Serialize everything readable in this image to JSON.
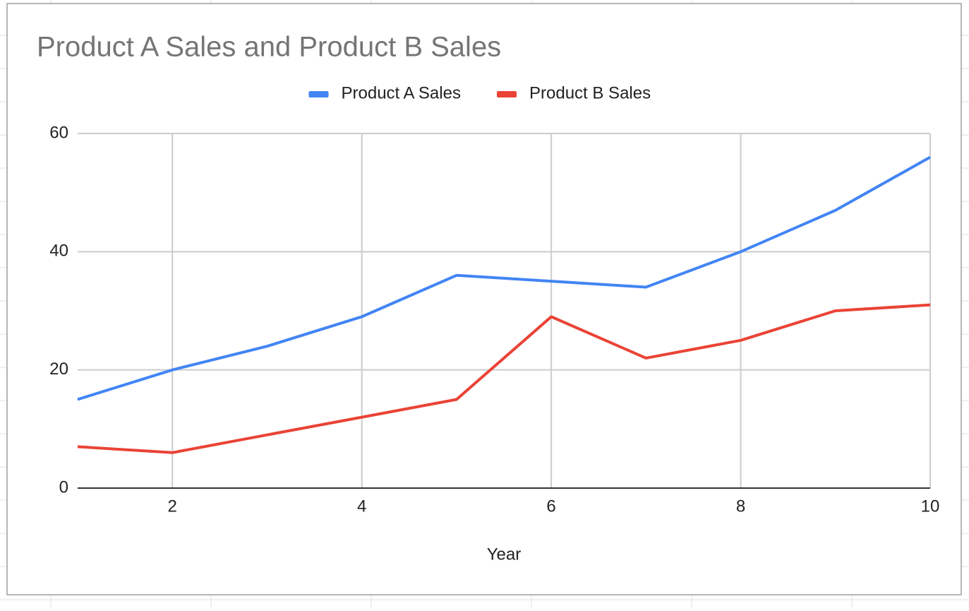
{
  "chart_data": {
    "type": "line",
    "title": "Product A Sales and Product B Sales",
    "x_label": "Year",
    "x": [
      1,
      2,
      3,
      4,
      5,
      6,
      7,
      8,
      9,
      10
    ],
    "series": [
      {
        "name": "Product A Sales",
        "color": "#4285f4",
        "values": [
          15,
          20,
          24,
          29,
          36,
          35,
          34,
          40,
          47,
          56
        ]
      },
      {
        "name": "Product B Sales",
        "color": "#ea4335",
        "values": [
          7,
          6,
          9,
          12,
          15,
          29,
          22,
          25,
          30,
          31
        ]
      }
    ],
    "xlim": [
      1,
      10
    ],
    "xticks": [
      2,
      4,
      6,
      8,
      10
    ],
    "ylim": [
      0,
      60
    ],
    "yticks": [
      0,
      20,
      40,
      60
    ],
    "grid": true,
    "legend": "top"
  }
}
